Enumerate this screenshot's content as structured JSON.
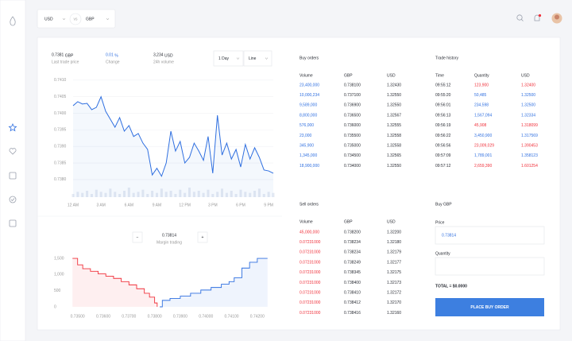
{
  "header": {
    "from": "USD",
    "vs": "vs",
    "to": "GBP"
  },
  "stats": [
    {
      "value": "0.7381",
      "unit": "GBP",
      "label": "Last trade price",
      "color": "#2a2d35"
    },
    {
      "value": "0.01",
      "unit": "%",
      "label": "Change",
      "color": "#2f6fe0"
    },
    {
      "value": "3,234",
      "unit": "USD",
      "label": "24h volume",
      "color": "#2a2d35"
    }
  ],
  "controls": {
    "range": "1 Day",
    "style": "Line"
  },
  "price_chart": {
    "type": "line",
    "color": "#2f6fe0",
    "x": [
      0,
      0.5,
      1,
      1.5,
      2,
      2.5,
      3,
      3.5,
      4,
      4.5,
      5,
      5.5,
      6,
      6.5,
      7,
      7.5,
      8,
      8.5,
      9,
      9.5,
      10,
      10.5,
      11,
      11.5,
      12,
      12.5,
      13,
      13.5,
      14,
      14.5,
      15,
      15.5,
      16,
      16.5,
      17,
      17.5,
      18,
      18.5,
      19,
      19.5,
      20,
      20.5,
      21,
      21.5
    ],
    "values": [
      0.74023,
      0.74035,
      0.74028,
      0.7403,
      0.74011,
      0.74018,
      0.7405,
      0.74006,
      0.73982,
      0.73958,
      0.73987,
      0.73946,
      0.73963,
      0.7393,
      0.73939,
      0.7391,
      0.73891,
      0.73814,
      0.73834,
      0.7381,
      0.7385,
      0.73946,
      0.73886,
      0.73915,
      0.7385,
      0.73867,
      0.7391,
      0.73886,
      0.73858,
      0.7393,
      0.73819,
      0.73994,
      0.73874,
      0.7391,
      0.73862,
      0.73891,
      0.73838,
      0.73906,
      0.73862,
      0.73896,
      0.73867,
      0.73829,
      0.73826,
      0.73819
    ],
    "volume": [
      3,
      5,
      4,
      6,
      3,
      7,
      5,
      4,
      8,
      5,
      3,
      6,
      9,
      4,
      5,
      7,
      3,
      6,
      4,
      8,
      5,
      6,
      3,
      7,
      4,
      9,
      5,
      6,
      4,
      7,
      3,
      5,
      8,
      4,
      6,
      3,
      7,
      5,
      4,
      6,
      8,
      3,
      5,
      4
    ],
    "xlim": [
      0,
      21.5
    ],
    "ylim": [
      0.73747,
      0.74114
    ],
    "xticks": [
      {
        "value": 0,
        "label": "12 AM"
      },
      {
        "value": 3,
        "label": "3 AM"
      },
      {
        "value": 6,
        "label": "6 AM"
      },
      {
        "value": 9,
        "label": "9 AM"
      },
      {
        "value": 12,
        "label": "12 PM"
      },
      {
        "value": 15,
        "label": "3 PM"
      },
      {
        "value": 18,
        "label": "6 PM"
      },
      {
        "value": 21,
        "label": "9 PM"
      }
    ],
    "yticks": [
      {
        "value": 0.741,
        "label": "0.7410"
      },
      {
        "value": 0.7405,
        "label": "0.7405"
      },
      {
        "value": 0.74,
        "label": "0.7400"
      },
      {
        "value": 0.7395,
        "label": "0.7395"
      },
      {
        "value": 0.739,
        "label": "0.7390"
      },
      {
        "value": 0.7385,
        "label": "0.7385"
      },
      {
        "value": 0.738,
        "label": "0.7380"
      }
    ],
    "grid": true
  },
  "depth": {
    "value": "0.73814",
    "label": "Margin trading",
    "minus": "−",
    "plus": "+"
  },
  "depth_chart": {
    "type": "step",
    "bids": {
      "color": "#f0303a",
      "x": [
        0.7348,
        0.735,
        0.7352,
        0.7355,
        0.7358,
        0.7361,
        0.7364,
        0.7367,
        0.737,
        0.7373,
        0.7376,
        0.7378,
        0.738,
        0.7381
      ],
      "values": [
        1500,
        1300,
        1180,
        1100,
        1020,
        950,
        880,
        780,
        680,
        560,
        420,
        300,
        120,
        0
      ]
    },
    "asks": {
      "color": "#2f6fe0",
      "x": [
        0.7382,
        0.7383,
        0.7386,
        0.739,
        0.7394,
        0.7398,
        0.7402,
        0.7406,
        0.7409,
        0.7411,
        0.7414,
        0.7417,
        0.742,
        0.7424
      ],
      "values": [
        0,
        200,
        260,
        330,
        420,
        520,
        600,
        700,
        780,
        900,
        1200,
        1380,
        1500,
        1500
      ]
    },
    "xlim": [
      0.7347,
      0.7425
    ],
    "ylim": [
      0,
      1575
    ],
    "xticks": [
      {
        "value": 0.735,
        "label": "0.73500"
      },
      {
        "value": 0.736,
        "label": "0.73600"
      },
      {
        "value": 0.737,
        "label": "0.73700"
      },
      {
        "value": 0.738,
        "label": "0.73800"
      },
      {
        "value": 0.739,
        "label": "0.73900"
      },
      {
        "value": 0.74,
        "label": "0.74000"
      },
      {
        "value": 0.741,
        "label": "0.74100"
      },
      {
        "value": 0.742,
        "label": "0.74200"
      }
    ],
    "yticks": [
      {
        "value": 1500,
        "label": "1,500"
      },
      {
        "value": 1000,
        "label": "1,000"
      },
      500,
      0
    ]
  },
  "buy_orders": {
    "title": "Buy orders",
    "columns": [
      "Volume",
      "GBP",
      "USD"
    ],
    "color": "#2f6fe0",
    "rows": [
      [
        "23,400,000",
        "0.738100",
        "1.32430"
      ],
      [
        "10,000,234",
        "0.737100",
        "1.32550"
      ],
      [
        "9,589,000",
        "0.736900",
        "1.32550"
      ],
      [
        "8,800,000",
        "0.736500",
        "1.32567"
      ],
      [
        "576,000",
        "0.736000",
        "1.32555"
      ],
      [
        "23,000",
        "0.735500",
        "1.32558"
      ],
      [
        "345,900",
        "0.735000",
        "1.32558"
      ],
      [
        "1,345,000",
        "0.734500",
        "1.32565"
      ],
      [
        "18,900,000",
        "0.734000",
        "1.32550"
      ]
    ]
  },
  "trade_history": {
    "title": "Trade history",
    "columns": [
      "Time",
      "Quantity",
      "USD"
    ],
    "rows": [
      [
        "09:55:12",
        "123,900",
        "1.32400"
      ],
      [
        "09:55:20",
        "50,485",
        "1.32500"
      ],
      [
        "09:56:01",
        "234,598",
        "1.32500"
      ],
      [
        "09:56:13",
        "1,567,094",
        "1.32334"
      ],
      [
        "09:56:19",
        "45,908",
        "1.318099"
      ],
      [
        "09:56:22",
        "3,450,900",
        "1.317569"
      ],
      [
        "09:56:56",
        "23,009,029",
        "1.390453"
      ],
      [
        "09:57:09",
        "1,789,001",
        "1.358123"
      ],
      [
        "09:57:12",
        "2,659,390",
        "1.601254"
      ]
    ],
    "row_colors": [
      "#f0303a",
      "#2f6fe0",
      "#2f6fe0",
      "#2f6fe0",
      "#f0303a",
      "#2f6fe0",
      "#f0303a",
      "#2f6fe0",
      "#f0303a"
    ]
  },
  "sell_orders": {
    "title": "Sell orders",
    "columns": [
      "Volume",
      "GBP",
      "USD"
    ],
    "color": "#f0303a",
    "rows": [
      [
        "45,000,000",
        "0.738200",
        "1.32200"
      ],
      [
        "0.07231000",
        "0.738234",
        "1.32180"
      ],
      [
        "0.07231000",
        "0.738234",
        "1.32179"
      ],
      [
        "0.07231000",
        "0.738249",
        "1.32177"
      ],
      [
        "0.07231000",
        "0.738345",
        "1.32175"
      ],
      [
        "0.07231000",
        "0.738400",
        "1.32173"
      ],
      [
        "0.07231000",
        "0.738410",
        "1.32172"
      ],
      [
        "0.07231000",
        "0.738412",
        "1.32170"
      ],
      [
        "0.07231000",
        "0.738416",
        "1.32160"
      ]
    ]
  },
  "buy_form": {
    "title": "Buy GBP",
    "price_label": "Price",
    "price": "0.73814",
    "quantity_label": "Quantity",
    "total": "TOTAL = $0.0000",
    "button": "PLACE BUY ORDER"
  }
}
